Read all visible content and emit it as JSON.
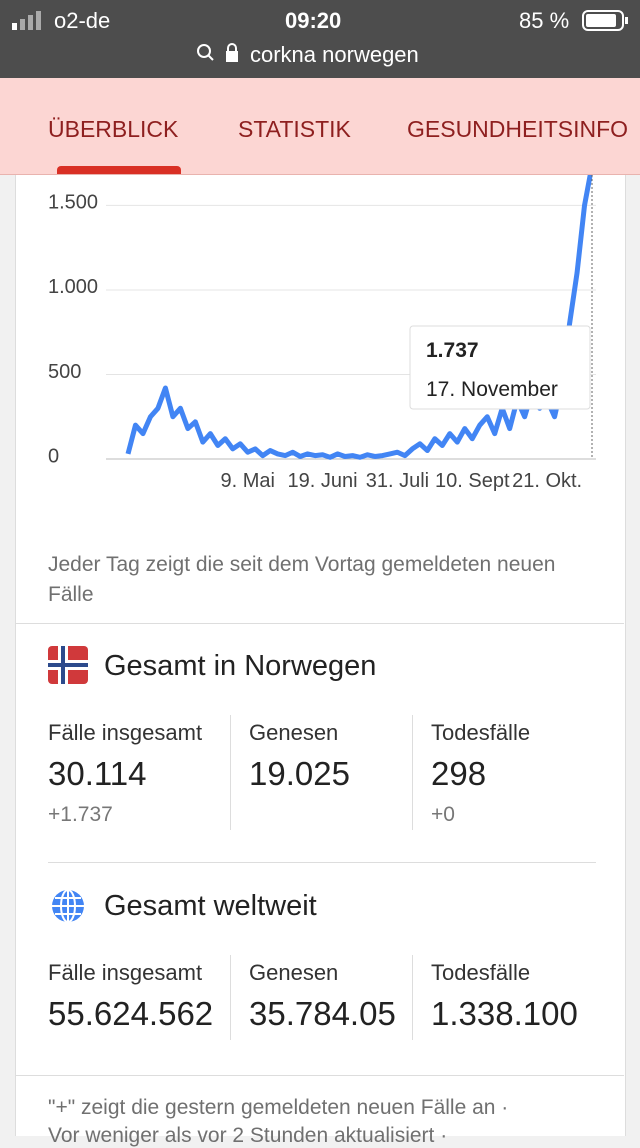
{
  "status_bar": {
    "carrier": "o2-de",
    "time": "09:20",
    "battery": "85 %"
  },
  "url": "corkna norwegen",
  "tabs": [
    "ÜBERBLICK",
    "STATISTIK",
    "GESUNDHEITSINFO"
  ],
  "chart_data": {
    "type": "line",
    "color": "#4285f4",
    "categories": [
      "",
      "",
      "",
      "",
      "",
      "",
      "",
      "",
      "",
      "",
      "",
      "",
      "",
      "",
      "",
      "",
      "9. Mai",
      "",
      "",
      "",
      "",
      "",
      "",
      "",
      "",
      "",
      "19. Juni",
      "",
      "",
      "",
      "",
      "",
      "",
      "",
      "",
      "",
      "31. Juli",
      "",
      "",
      "",
      "",
      "",
      "",
      "",
      "",
      "",
      "10. Sept",
      "",
      "",
      "",
      "",
      "",
      "",
      "",
      "",
      "",
      "21. Okt.",
      "",
      "",
      "",
      "",
      "",
      ""
    ],
    "values": [
      30,
      200,
      150,
      250,
      300,
      420,
      250,
      300,
      180,
      220,
      100,
      150,
      80,
      120,
      60,
      90,
      40,
      60,
      20,
      50,
      30,
      20,
      40,
      15,
      30,
      20,
      25,
      10,
      30,
      15,
      20,
      10,
      25,
      15,
      20,
      30,
      40,
      20,
      60,
      90,
      50,
      120,
      80,
      150,
      100,
      180,
      120,
      200,
      250,
      150,
      300,
      180,
      350,
      250,
      400,
      300,
      350,
      250,
      450,
      800,
      1100,
      1500,
      1737
    ],
    "ylim": [
      0,
      1680
    ],
    "yticks": [
      0,
      500,
      {
        "value": 1000,
        "label": "1.000"
      },
      {
        "value": 1500,
        "label": "1.500"
      }
    ],
    "grid": true,
    "tooltip": {
      "label": "1.737",
      "date": "17. November"
    }
  },
  "chart_note": "Jeder Tag zeigt die seit dem Vortag gemeldeten neuen Fälle",
  "country": {
    "title": "Gesamt in Norwegen",
    "stats": [
      {
        "label": "Fälle insgesamt",
        "value": "30.114",
        "change": "+1.737"
      },
      {
        "label": "Genesen",
        "value": "19.025"
      },
      {
        "label": "Todesfälle",
        "value": "298",
        "change": "+0"
      }
    ]
  },
  "world": {
    "title": "Gesamt weltweit",
    "stats": [
      {
        "label": "Fälle insgesamt",
        "value": "55.624.562"
      },
      {
        "label": "Genesen",
        "value": "35.784.05"
      },
      {
        "label": "Todesfälle",
        "value": "1.338.100"
      }
    ]
  },
  "footer": [
    "\"+\" zeigt die gestern gemeldeten neuen Fälle an ·",
    "Vor weniger als vor 2 Stunden aktualisiert ·"
  ]
}
